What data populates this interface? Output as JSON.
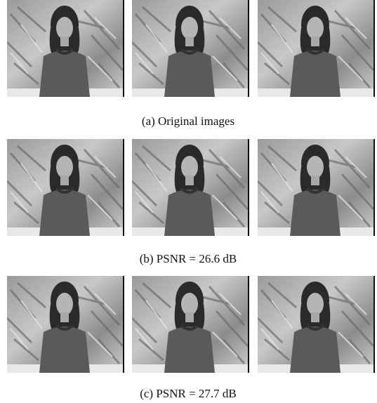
{
  "figure": {
    "rows": [
      {
        "caption": "(a) Original images"
      },
      {
        "caption": "(b) PSNR = 26.6 dB"
      },
      {
        "caption": "(c) PSNR = 27.7 dB"
      }
    ]
  }
}
